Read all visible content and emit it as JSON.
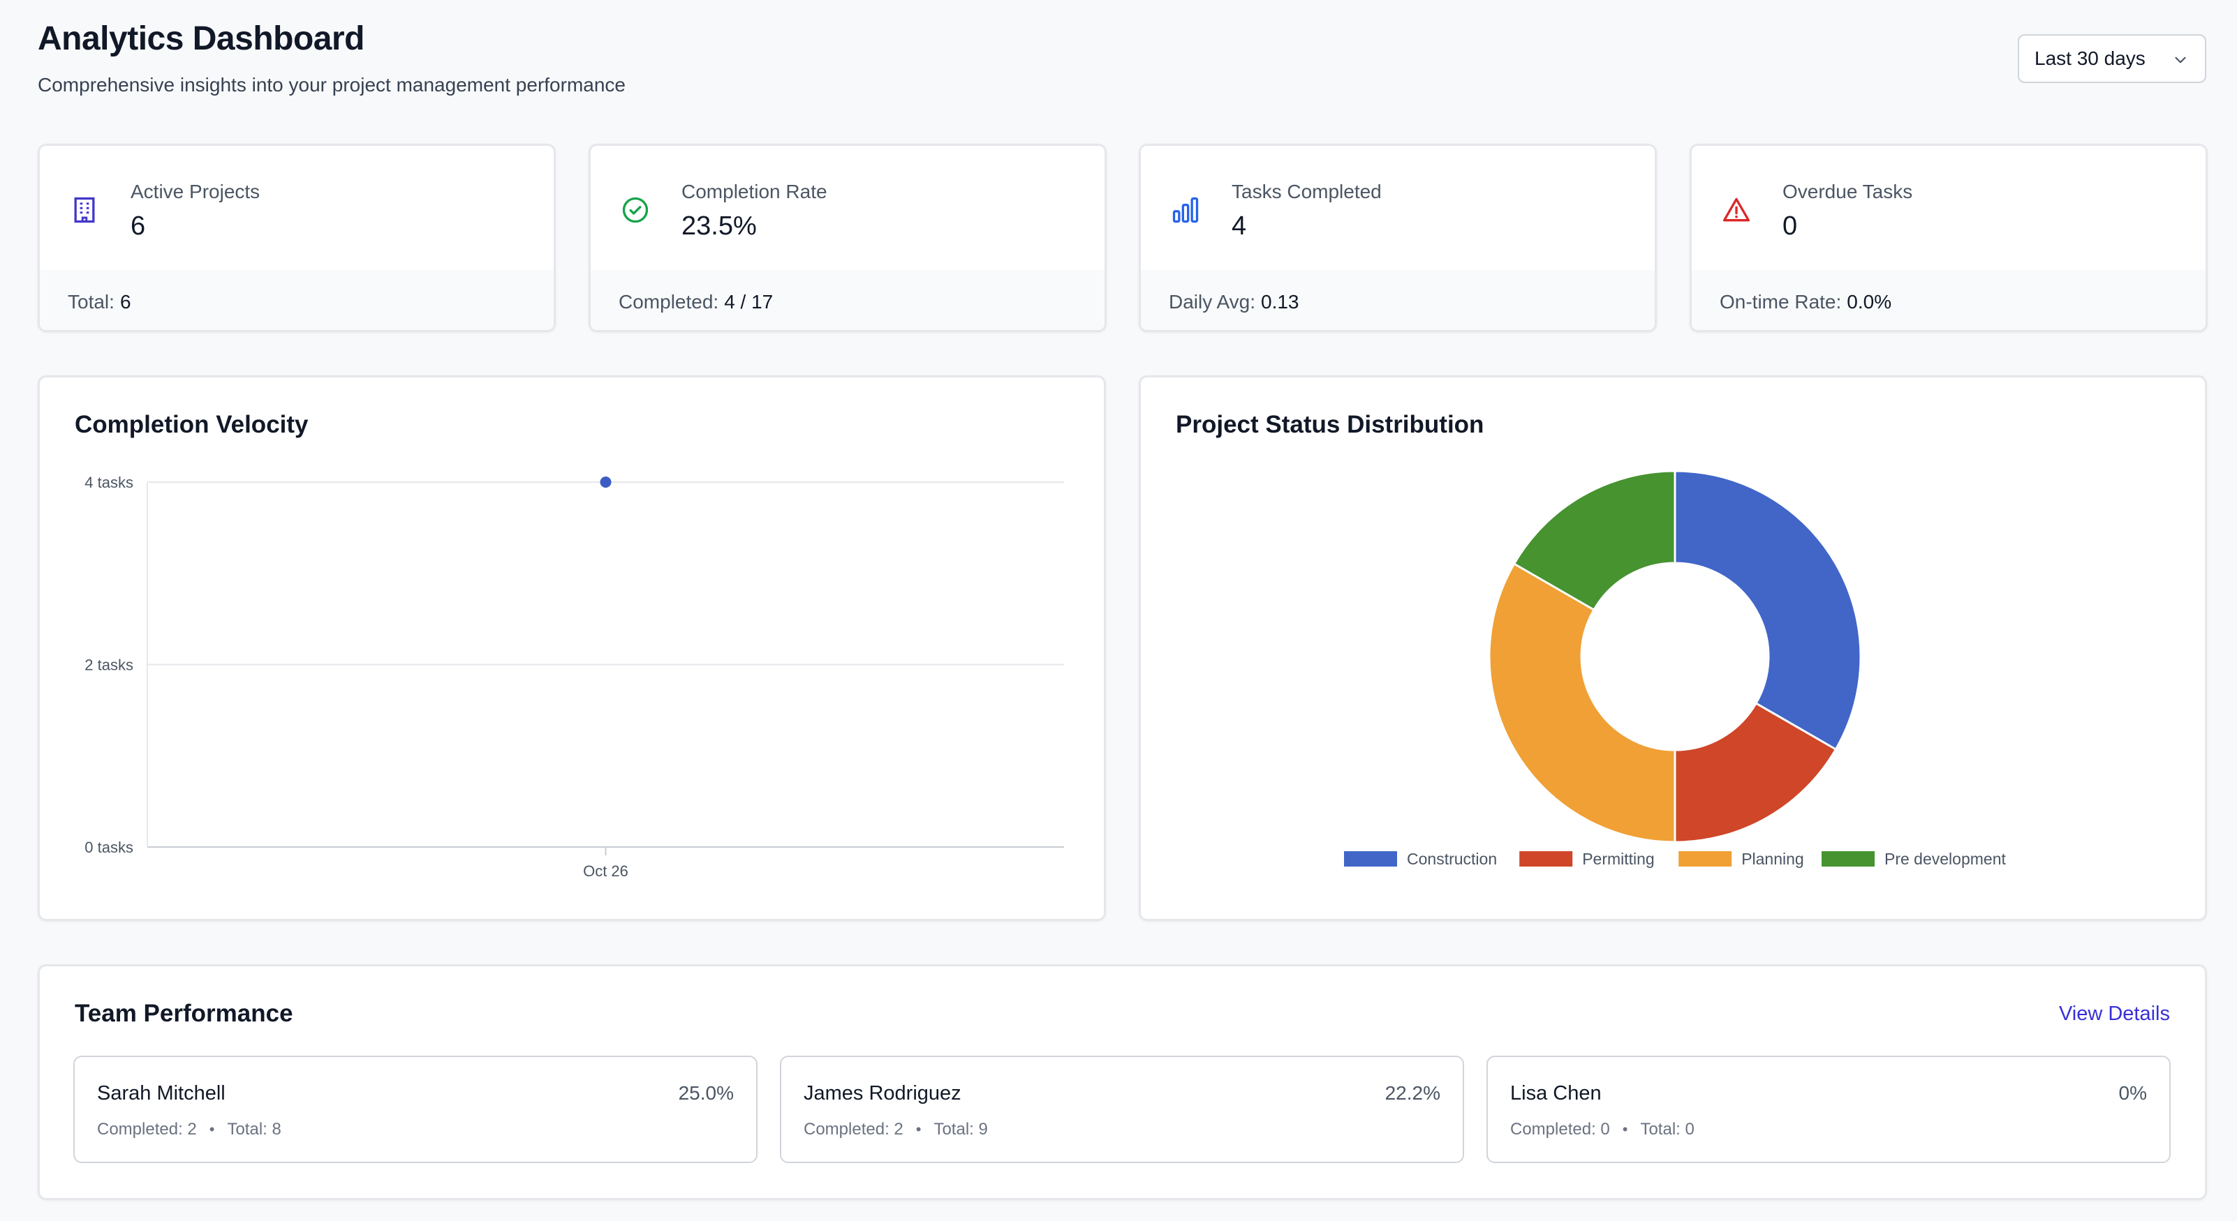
{
  "header": {
    "title": "Analytics Dashboard",
    "subtitle": "Comprehensive insights into your project management performance",
    "range_select": "Last 30 days"
  },
  "stats": [
    {
      "label": "Active Projects",
      "value": "6",
      "footer_label": "Total:",
      "footer_value": "6",
      "icon": "building-icon",
      "color": "#4338ca"
    },
    {
      "label": "Completion Rate",
      "value": "23.5%",
      "footer_label": "Completed:",
      "footer_value": "4 / 17",
      "icon": "check-circle-icon",
      "color": "#16a34a"
    },
    {
      "label": "Tasks Completed",
      "value": "4",
      "footer_label": "Daily Avg:",
      "footer_value": "0.13",
      "icon": "bar-chart-icon",
      "color": "#2563eb"
    },
    {
      "label": "Overdue Tasks",
      "value": "0",
      "footer_label": "On-time Rate:",
      "footer_value": "0.0%",
      "icon": "warning-icon",
      "color": "#dc2626"
    }
  ],
  "velocity": {
    "title": "Completion Velocity"
  },
  "distribution": {
    "title": "Project Status Distribution"
  },
  "chart_data": [
    {
      "type": "line",
      "title": "Completion Velocity",
      "x": [
        "Oct 26"
      ],
      "series": [
        {
          "values": [
            4
          ],
          "color": "#3b5cc4"
        }
      ],
      "y_ticks": [
        "0 tasks",
        "2 tasks",
        "4 tasks"
      ],
      "ylim": [
        0,
        4
      ],
      "grid": true
    },
    {
      "type": "pie",
      "title": "Project Status Distribution",
      "donut": true,
      "categories": [
        "Construction",
        "Permitting",
        "Planning",
        "Pre development"
      ],
      "values": [
        2,
        1,
        2,
        1
      ],
      "colors": [
        "#4166c8",
        "#cf4628",
        "#f0a035",
        "#469330"
      ],
      "legend": "bottom"
    }
  ],
  "team": {
    "title": "Team Performance",
    "view_details": "View Details",
    "members": [
      {
        "name": "Sarah Mitchell",
        "pct": "25.0%",
        "completed": "Completed: 2",
        "total": "Total: 8"
      },
      {
        "name": "James Rodriguez",
        "pct": "22.2%",
        "completed": "Completed: 2",
        "total": "Total: 9"
      },
      {
        "name": "Lisa Chen",
        "pct": "0%",
        "completed": "Completed: 0",
        "total": "Total: 0"
      }
    ],
    "separator": "•"
  }
}
